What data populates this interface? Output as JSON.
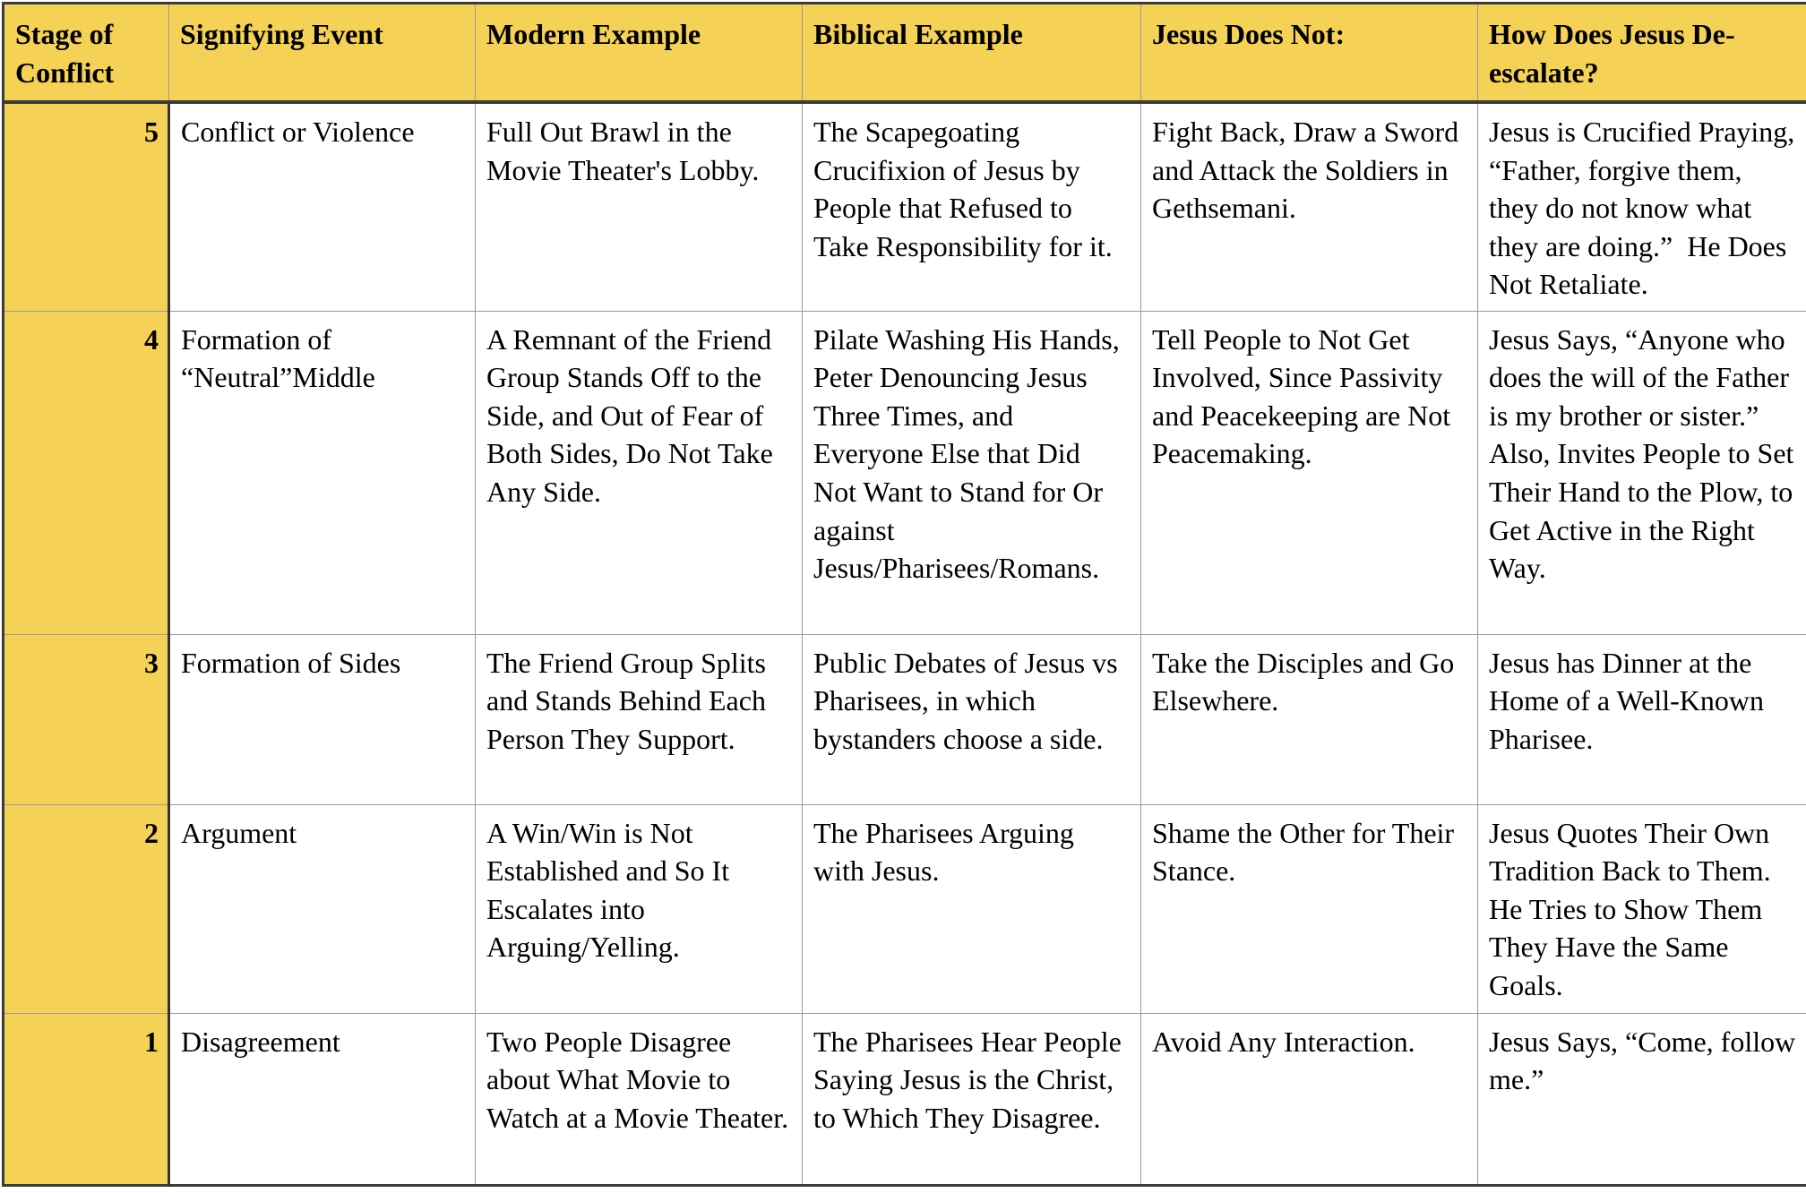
{
  "colors": {
    "header_bg": "#f5d256",
    "stage_column_bg": "#f5d256",
    "outer_border": "#3b3b3b",
    "grid_line": "#9b9b9b",
    "text": "#000000"
  },
  "table": {
    "columns": [
      "Stage of Conflict",
      "Signifying Event",
      "Modern Example",
      "Biblical Example",
      "Jesus Does Not:",
      "How Does Jesus De-escalate?"
    ],
    "rows": [
      {
        "stage": "5",
        "signifying_event": "Conflict or Violence",
        "modern_example": "Full Out Brawl in the Movie Theater's Lobby.",
        "biblical_example": "The Scapegoating Crucifixion of Jesus by People that Refused to Take Responsibility for it.",
        "jesus_does_not": "Fight Back, Draw a Sword and Attack the Soldiers in Gethsemani.",
        "how_deescalate": "Jesus is Crucified Praying, “Father, forgive them, they do not know what they are doing.”  He Does Not Retaliate."
      },
      {
        "stage": "4",
        "signifying_event": "Formation of “Neutral”Middle",
        "modern_example": "A Remnant of the Friend Group Stands Off to the Side, and Out of Fear of Both Sides, Do Not Take Any Side.",
        "biblical_example": "Pilate Washing His Hands, Peter Denouncing Jesus Three Times, and Everyone Else that Did Not Want to Stand for Or against Jesus/Pharisees/Romans.",
        "jesus_does_not": "Tell People to Not Get Involved, Since Passivity and Peacekeeping are Not Peacemaking.",
        "how_deescalate": "Jesus Says, “Anyone who does the will of the Father is my brother or sister.”  Also, Invites People to Set Their Hand to the Plow, to Get Active in the Right Way."
      },
      {
        "stage": "3",
        "signifying_event": "Formation of Sides",
        "modern_example": "The Friend Group Splits and Stands Behind Each Person They Support.",
        "biblical_example": "Public Debates of Jesus vs Pharisees, in which bystanders choose a side.",
        "jesus_does_not": "Take the Disciples and Go Elsewhere.",
        "how_deescalate": "Jesus has Dinner at the Home of a Well-Known Pharisee."
      },
      {
        "stage": "2",
        "signifying_event": "Argument",
        "modern_example": "A Win/Win is Not Established and So It Escalates into Arguing/Yelling.",
        "biblical_example": "The Pharisees Arguing with Jesus.",
        "jesus_does_not": "Shame the Other for Their Stance.",
        "how_deescalate": "Jesus Quotes Their Own Tradition Back to Them.  He Tries to Show Them They Have the Same Goals."
      },
      {
        "stage": "1",
        "signifying_event": "Disagreement",
        "modern_example": "Two People Disagree about What Movie to Watch at a Movie Theater.",
        "biblical_example": "The Pharisees Hear People Saying Jesus is the Christ, to Which They Disagree.",
        "jesus_does_not": "Avoid Any Interaction.",
        "how_deescalate": "Jesus Says, “Come, follow me.”"
      }
    ]
  }
}
